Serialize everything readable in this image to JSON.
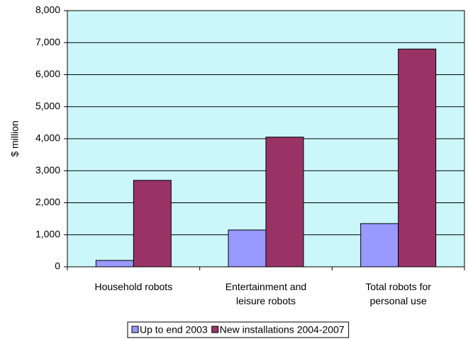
{
  "chart_data": {
    "type": "bar",
    "ylabel": "$ million",
    "categories": [
      "Household robots",
      "Entertainment and leisure robots",
      "Total robots for personal use"
    ],
    "series": [
      {
        "name": "Up to end 2003",
        "color": "#9999ff",
        "values": [
          200,
          1150,
          1350
        ]
      },
      {
        "name": "New installations 2004-2007",
        "color": "#993366",
        "values": [
          2700,
          4050,
          6800
        ]
      }
    ],
    "ylim": [
      0,
      8000
    ],
    "yticks": [
      0,
      {
        "value": 1000,
        "label": "1,000"
      },
      {
        "value": 2000,
        "label": "2,000"
      },
      {
        "value": 3000,
        "label": "3,000"
      },
      {
        "value": 4000,
        "label": "4,000"
      },
      {
        "value": 5000,
        "label": "5,000"
      },
      {
        "value": 6000,
        "label": "6,000"
      },
      {
        "value": 7000,
        "label": "7,000"
      },
      {
        "value": 8000,
        "label": "8,000"
      }
    ],
    "grid": true,
    "legend": "bottom",
    "background": "#ccf7fa"
  }
}
